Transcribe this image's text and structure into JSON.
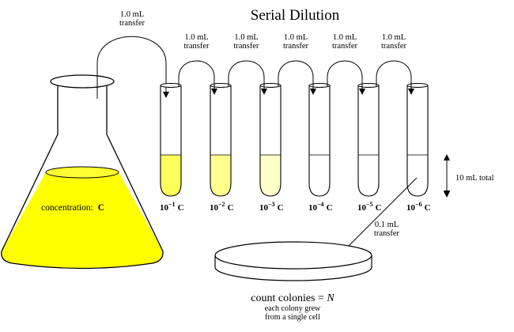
{
  "title": "Serial Dilution",
  "flask": {
    "label": "concentration:",
    "symbol": "C",
    "liquid_color": "#ffff00"
  },
  "first_transfer": {
    "amount": "1.0 mL",
    "word": "transfer"
  },
  "tube_transfers": [
    {
      "amount": "1.0 mL",
      "word": "transfer"
    },
    {
      "amount": "1.0 mL",
      "word": "transfer"
    },
    {
      "amount": "1.0 mL",
      "word": "transfer"
    },
    {
      "amount": "1.0 mL",
      "word": "transfer"
    },
    {
      "amount": "1.0 mL",
      "word": "transfer"
    }
  ],
  "tubes": [
    {
      "base": "10",
      "exp": "−1",
      "symbol": "C",
      "color": "#ffff5a"
    },
    {
      "base": "10",
      "exp": "−2",
      "symbol": "C",
      "color": "#ffff8c"
    },
    {
      "base": "10",
      "exp": "−3",
      "symbol": "C",
      "color": "#ffffc8"
    },
    {
      "base": "10",
      "exp": "−4",
      "symbol": "C",
      "color": "#ffffff"
    },
    {
      "base": "10",
      "exp": "−5",
      "symbol": "C",
      "color": "#ffffff"
    },
    {
      "base": "10",
      "exp": "−6",
      "symbol": "C",
      "color": "#ffffff"
    }
  ],
  "volume_label": "10 mL total",
  "plate_transfer": {
    "amount": "0.1 mL",
    "word": "transfer"
  },
  "plate": {
    "title_prefix": "count colonies = ",
    "title_var": "N",
    "caption_line1": "each colony grew",
    "caption_line2": "from a single cell"
  }
}
